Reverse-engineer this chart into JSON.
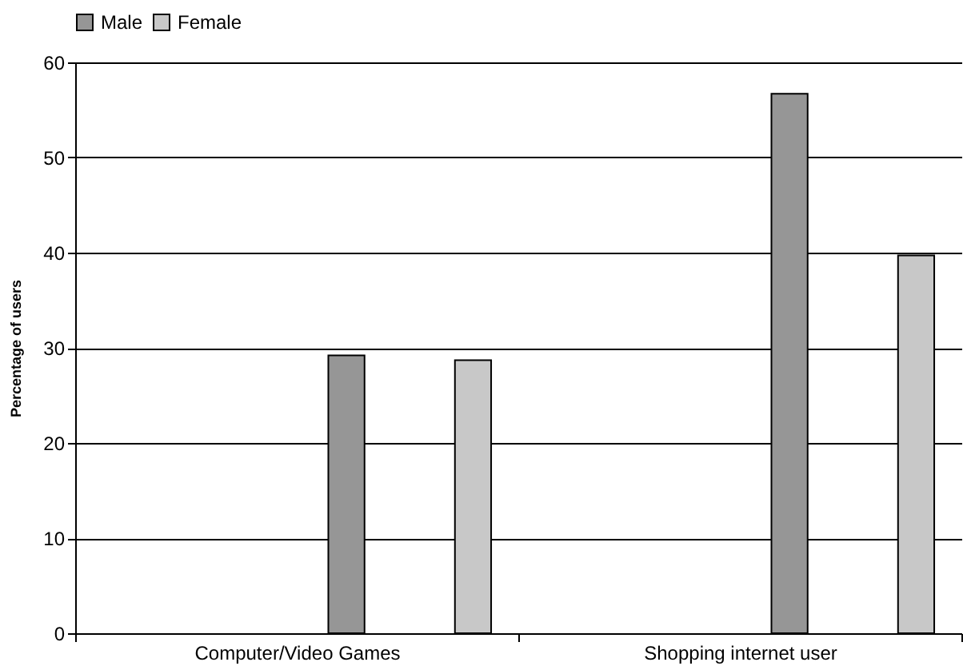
{
  "chart_data": {
    "type": "bar",
    "ylabel": "Percentage of users",
    "categories": [
      "Computer/Video Games",
      "Shopping internet user"
    ],
    "series": [
      {
        "name": "Male",
        "color": "#969696",
        "values": [
          29.2,
          56.7
        ]
      },
      {
        "name": "Female",
        "color": "#c8c8c8",
        "values": [
          28.7,
          39.7
        ]
      }
    ],
    "ylim": [
      0,
      60
    ],
    "yticks": [
      0,
      10,
      20,
      30,
      40,
      50,
      60
    ],
    "grid": "y",
    "legend": "top"
  }
}
